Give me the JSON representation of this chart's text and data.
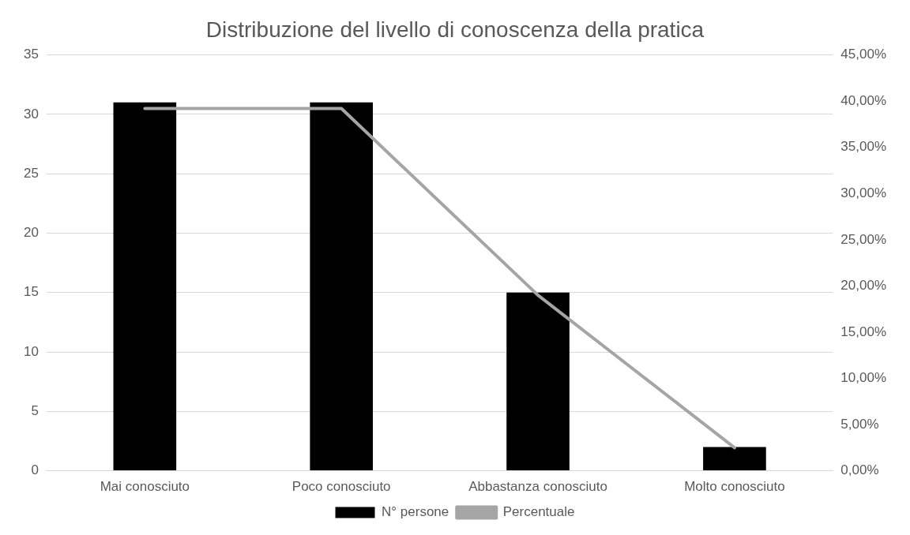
{
  "chart_data": {
    "type": "bar",
    "title": "Distribuzione del livello di conoscenza della pratica",
    "categories": [
      "Mai conosciuto",
      "Poco conosciuto",
      "Abbastanza conosciuto",
      "Molto conosciuto"
    ],
    "series": [
      {
        "name": "N° persone",
        "color": "#000000",
        "values": [
          31,
          31,
          15,
          2
        ]
      },
      {
        "name": "Percentuale",
        "type": "line",
        "axis": "y2",
        "color": "#a5a5a5",
        "values": [
          39.2,
          39.2,
          19,
          2.5
        ]
      }
    ],
    "ylim": [
      0,
      35
    ],
    "yticks": [
      0,
      5,
      10,
      15,
      20,
      25,
      30,
      35
    ],
    "y2lim": [
      0,
      45
    ],
    "y2ticks": [
      {
        "value": 0,
        "label": "0,00%"
      },
      {
        "value": 5,
        "label": "5,00%"
      },
      {
        "value": 10,
        "label": "10,00%"
      },
      {
        "value": 15,
        "label": "15,00%"
      },
      {
        "value": 20,
        "label": "20,00%"
      },
      {
        "value": 25,
        "label": "25,00%"
      },
      {
        "value": 30,
        "label": "30,00%"
      },
      {
        "value": 35,
        "label": "35,00%"
      },
      {
        "value": 40,
        "label": "40,00%"
      },
      {
        "value": 45,
        "label": "45,00%"
      }
    ],
    "grid": "y",
    "legend": "bottom",
    "marker": "none"
  }
}
